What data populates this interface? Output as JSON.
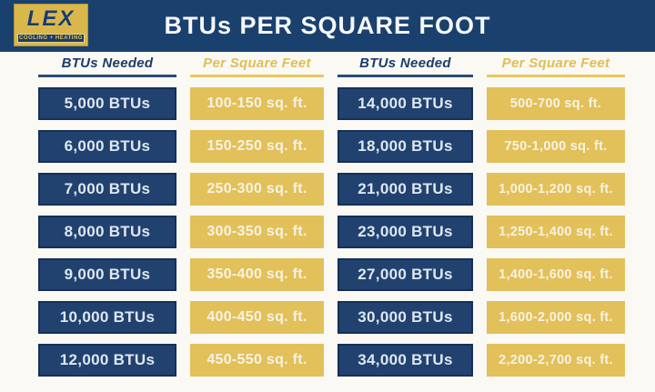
{
  "logo": {
    "name": "LEX",
    "tagline": "COOLING + HEATING"
  },
  "colors": {
    "navy_band": "#1a406e",
    "cell_navy": "#21426f",
    "cell_navy_border": "#152f59",
    "gold": "#e2c05a",
    "background": "#fbf9f4",
    "header_text_navy": "#1c3c6b",
    "header_text_gold": "#e0bd55"
  },
  "chart_data": {
    "type": "table",
    "title": "BTUs PER SQUARE FOOT",
    "columns": [
      "BTUs Needed",
      "Per Square Feet",
      "BTUs Needed",
      "Per Square Feet"
    ],
    "rows": [
      [
        "5,000 BTUs",
        "100-150 sq. ft.",
        "14,000 BTUs",
        "500-700 sq. ft."
      ],
      [
        "6,000 BTUs",
        "150-250 sq. ft.",
        "18,000 BTUs",
        "750-1,000 sq. ft."
      ],
      [
        "7,000 BTUs",
        "250-300 sq. ft.",
        "21,000 BTUs",
        "1,000-1,200 sq. ft."
      ],
      [
        "8,000 BTUs",
        "300-350 sq. ft.",
        "23,000 BTUs",
        "1,250-1,400 sq. ft."
      ],
      [
        "9,000 BTUs",
        "350-400 sq. ft.",
        "27,000 BTUs",
        "1,400-1,600 sq. ft."
      ],
      [
        "10,000 BTUs",
        "400-450 sq. ft.",
        "30,000 BTUs",
        "1,600-2,000 sq. ft."
      ],
      [
        "12,000 BTUs",
        "450-550 sq. ft.",
        "34,000 BTUs",
        "2,200-2,700 sq. ft."
      ]
    ]
  }
}
